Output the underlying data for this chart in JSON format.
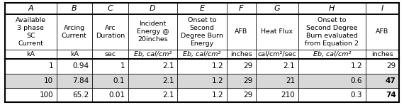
{
  "col_letters": [
    "A",
    "B",
    "C",
    "D",
    "E",
    "F",
    "G",
    "H",
    "I"
  ],
  "col_headers_line1": [
    "Available\n3 phase\nSC\nCurrent",
    "Arcing\nCurrent",
    "Arc\nDuration",
    "Incident\nEnergy @\n20inches",
    "Onset to\nSecond\nDegree Burn\nEnergy",
    "AFB",
    "Heat Flux",
    "Onset to\nSecond Degree\nBurn evaluated\nfrom Equation 2",
    "AFB"
  ],
  "col_headers_line2": [
    "kA",
    "kA",
    "sec",
    "Eb, cal/cm²",
    "Eb, cal/cm²",
    "inches",
    "cal/cm²/sec",
    "Eb, cal/cm²",
    "inches"
  ],
  "data_rows": [
    [
      "1",
      "0.94",
      "1",
      "2.1",
      "1.2",
      "29",
      "2.1",
      "1.2",
      "29"
    ],
    [
      "10",
      "7.84",
      "0.1",
      "2.1",
      "1.2",
      "29",
      "21",
      "0.6",
      "47"
    ],
    [
      "100",
      "65.2",
      "0.01",
      "2.1",
      "1.2",
      "29",
      "210",
      "0.3",
      "74"
    ]
  ],
  "bold_cells": [
    [
      false,
      false,
      false,
      false,
      false,
      false,
      false,
      false,
      false
    ],
    [
      false,
      false,
      false,
      false,
      false,
      false,
      false,
      false,
      true
    ],
    [
      false,
      false,
      false,
      false,
      false,
      false,
      false,
      false,
      true
    ]
  ],
  "row_shading": [
    "white",
    "#d8d8d8",
    "white"
  ],
  "col_widths_rel": [
    1.15,
    0.8,
    0.8,
    1.1,
    1.1,
    0.65,
    0.95,
    1.5,
    0.75
  ],
  "border_color": "#000000",
  "fig_width": 5.7,
  "fig_height": 1.48,
  "dpi": 100
}
